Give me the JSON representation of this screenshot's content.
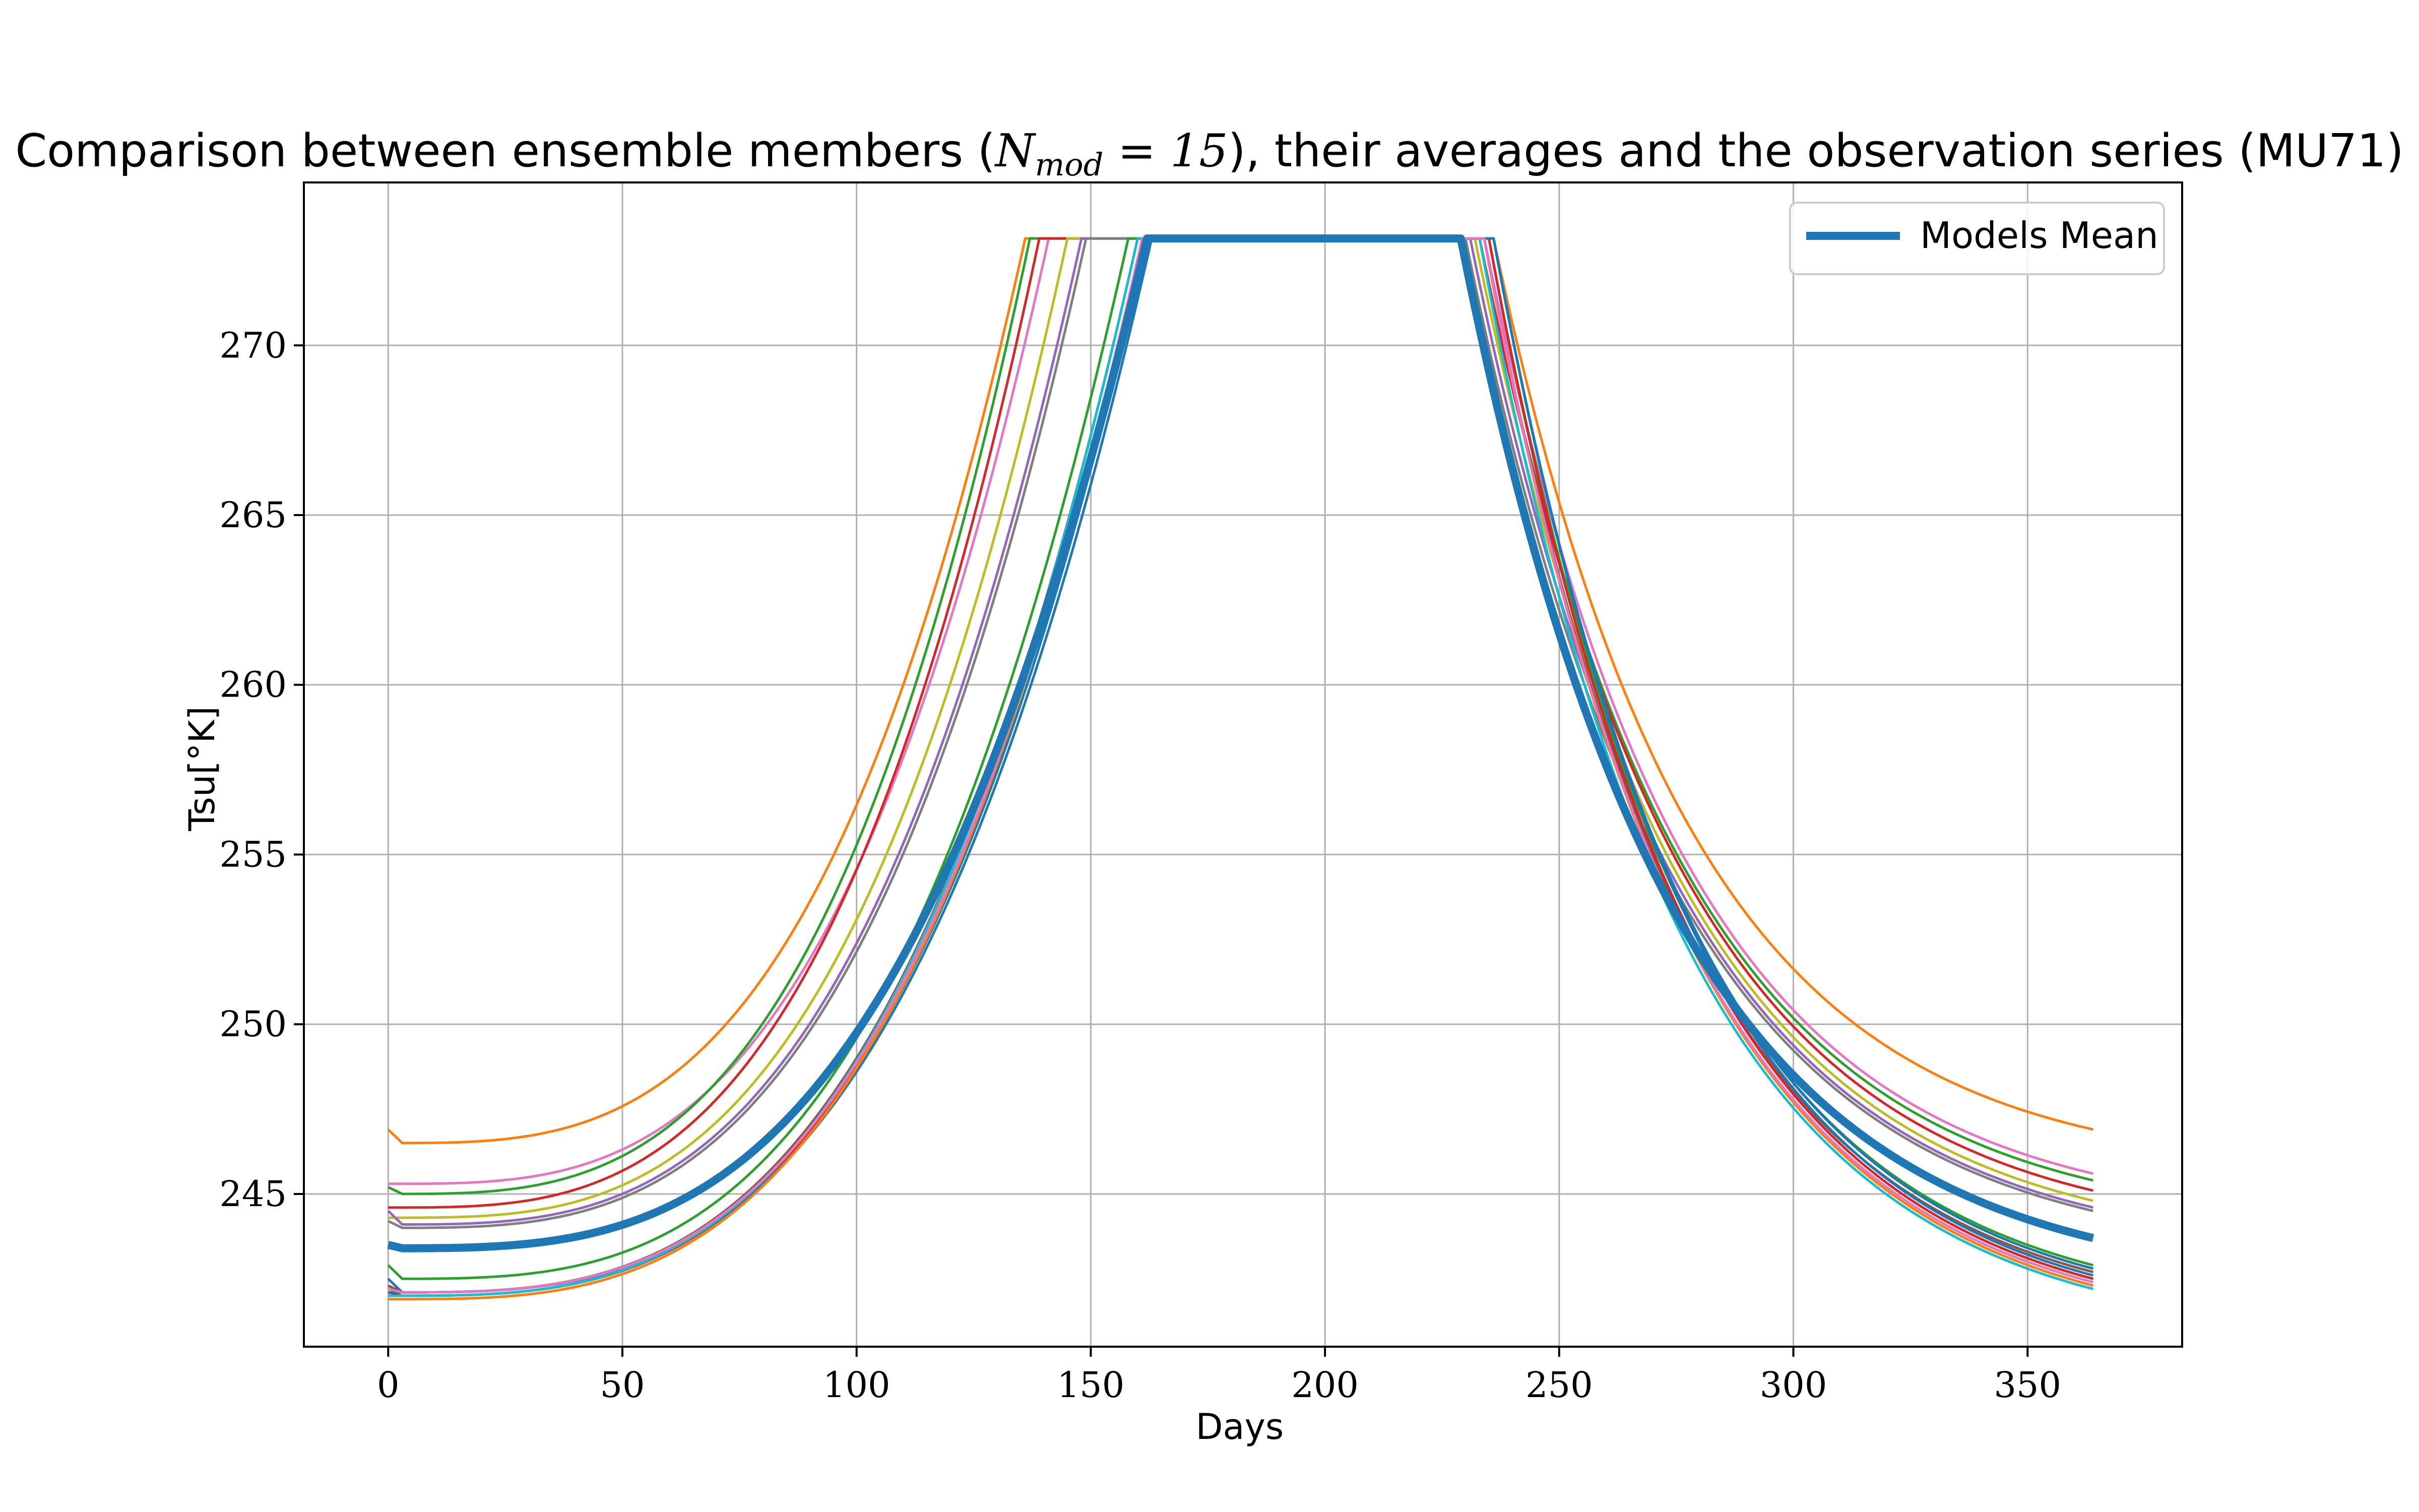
{
  "chart_data": {
    "type": "line",
    "title": {
      "prefix": "Comparison between ensemble members (",
      "math_var": "N",
      "math_sub": "mod",
      "math_eq": " = 15",
      "suffix": "), their averages and the observation series (MU71)"
    },
    "xlabel": "Days",
    "ylabel": "Tsu[°K]",
    "xlim": [
      -18,
      383
    ],
    "ylim": [
      240.5,
      274.8
    ],
    "xticks": [
      0,
      50,
      100,
      150,
      200,
      250,
      300,
      350
    ],
    "yticks": [
      245,
      250,
      255,
      260,
      265,
      270
    ],
    "grid": true,
    "legend": {
      "position": "top-right",
      "entries": [
        "Models Mean"
      ]
    },
    "x_range_days": [
      0,
      364
    ],
    "melt_plateau": 273.15,
    "members": [
      {
        "color": "#ff7f0e",
        "start": 246.9,
        "min": 246.5,
        "rise_end": 136,
        "fall_start": 236,
        "end": 246.9
      },
      {
        "color": "#e377c2",
        "start": 245.3,
        "min": 245.3,
        "rise_end": 141,
        "fall_start": 234,
        "end": 245.6
      },
      {
        "color": "#2ca02c",
        "start": 245.2,
        "min": 245.0,
        "rise_end": 137,
        "fall_start": 233,
        "end": 245.4
      },
      {
        "color": "#d62728",
        "start": 244.6,
        "min": 244.6,
        "rise_end": 139,
        "fall_start": 233,
        "end": 245.1
      },
      {
        "color": "#bcbd22",
        "start": 244.3,
        "min": 244.3,
        "rise_end": 145,
        "fall_start": 232,
        "end": 244.8
      },
      {
        "color": "#9467bd",
        "start": 244.5,
        "min": 244.1,
        "rise_end": 148,
        "fall_start": 231,
        "end": 244.6
      },
      {
        "color": "#7f7f7f",
        "start": 244.2,
        "min": 244.0,
        "rise_end": 149,
        "fall_start": 230,
        "end": 244.5
      },
      {
        "color": "#2ca02c",
        "start": 242.9,
        "min": 242.5,
        "rise_end": 158,
        "fall_start": 235,
        "end": 242.9
      },
      {
        "color": "#1f77b4",
        "start": 242.5,
        "min": 242.1,
        "rise_end": 162,
        "fall_start": 236,
        "end": 242.8
      },
      {
        "color": "#8c564b",
        "start": 242.3,
        "min": 242.1,
        "rise_end": 160,
        "fall_start": 234,
        "end": 242.7
      },
      {
        "color": "#d62728",
        "start": 242.1,
        "min": 242.0,
        "rise_end": 161,
        "fall_start": 235,
        "end": 242.5
      },
      {
        "color": "#1f77b4",
        "start": 242.1,
        "min": 242.1,
        "rise_end": 163,
        "fall_start": 236,
        "end": 242.6
      },
      {
        "color": "#ff7f0e",
        "start": 241.9,
        "min": 241.9,
        "rise_end": 161,
        "fall_start": 234,
        "end": 242.3
      },
      {
        "color": "#17becf",
        "start": 242.0,
        "min": 242.0,
        "rise_end": 160,
        "fall_start": 233,
        "end": 242.2
      },
      {
        "color": "#e377c2",
        "start": 242.2,
        "min": 242.1,
        "rise_end": 161,
        "fall_start": 234,
        "end": 242.4
      }
    ],
    "mean": {
      "name": "Models Mean",
      "color": "#1f77b4",
      "start": 243.5,
      "min": 243.4,
      "rise_end": 162,
      "fall_start": 229,
      "end": 243.7
    }
  }
}
